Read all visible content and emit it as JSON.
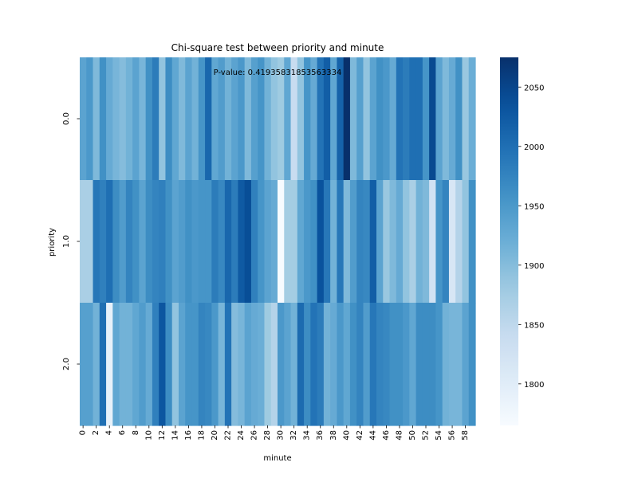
{
  "chart_data": {
    "type": "heatmap",
    "title": "Chi-square test between priority and minute",
    "annotation": "P-value: 0.41935831853563334",
    "xlabel": "minute",
    "ylabel": "priority",
    "x": [
      0,
      1,
      2,
      3,
      4,
      5,
      6,
      7,
      8,
      9,
      10,
      11,
      12,
      13,
      14,
      15,
      16,
      17,
      18,
      19,
      20,
      21,
      22,
      23,
      24,
      25,
      26,
      27,
      28,
      29,
      30,
      31,
      32,
      33,
      34,
      35,
      36,
      37,
      38,
      39,
      40,
      41,
      42,
      43,
      44,
      45,
      46,
      47,
      48,
      49,
      50,
      51,
      52,
      53,
      54,
      55,
      56,
      57,
      58,
      59
    ],
    "x_tick_labels": [
      "0",
      "2",
      "4",
      "6",
      "8",
      "10",
      "12",
      "14",
      "16",
      "18",
      "20",
      "22",
      "24",
      "26",
      "28",
      "30",
      "32",
      "34",
      "36",
      "38",
      "40",
      "42",
      "44",
      "46",
      "48",
      "50",
      "52",
      "54",
      "56",
      "58"
    ],
    "y": [
      "0.0",
      "1.0",
      "2.0"
    ],
    "values": [
      [
        1935,
        1950,
        1905,
        1960,
        1925,
        1910,
        1900,
        1915,
        1935,
        1910,
        1960,
        1985,
        1890,
        1965,
        1930,
        1905,
        1935,
        1915,
        1955,
        2010,
        1930,
        1945,
        1915,
        1935,
        1950,
        1905,
        1940,
        1955,
        1915,
        1890,
        1880,
        1930,
        1840,
        1890,
        1955,
        1925,
        1995,
        2020,
        1930,
        2015,
        2075,
        1905,
        1940,
        1890,
        1935,
        1960,
        1950,
        1925,
        1995,
        1985,
        2000,
        2000,
        1955,
        2045,
        1935,
        1905,
        1925,
        1960,
        1885,
        1920
      ],
      [
        1870,
        1870,
        1990,
        1980,
        2000,
        1965,
        1945,
        1975,
        1960,
        1935,
        1965,
        1975,
        1980,
        1960,
        1935,
        1945,
        1960,
        1950,
        1955,
        1955,
        1985,
        1970,
        2010,
        1985,
        2025,
        2040,
        1980,
        1955,
        1935,
        1925,
        1765,
        1875,
        1875,
        1930,
        1950,
        1960,
        2035,
        1990,
        1915,
        1990,
        1905,
        1945,
        1975,
        1970,
        2020,
        1935,
        1885,
        1905,
        1925,
        1890,
        1870,
        1915,
        1905,
        1825,
        1955,
        1975,
        1815,
        1860,
        1890,
        1960
      ],
      [
        1940,
        1940,
        1915,
        2000,
        1790,
        1930,
        1915,
        1915,
        1930,
        1945,
        1925,
        1980,
        2030,
        1965,
        1890,
        1935,
        1955,
        1955,
        1975,
        1970,
        1950,
        1910,
        1995,
        1900,
        1910,
        1935,
        1925,
        1920,
        1880,
        1860,
        1950,
        1935,
        1915,
        2005,
        1965,
        1995,
        1985,
        1915,
        1925,
        1950,
        1930,
        1960,
        1975,
        1945,
        1990,
        1975,
        1970,
        1960,
        1960,
        1950,
        1930,
        1965,
        1965,
        1965,
        1955,
        1915,
        1910,
        1910,
        1935,
        1960
      ]
    ],
    "colormap": "Blues",
    "vmin": 1765,
    "vmax": 2075,
    "colorbar_ticks": [
      1800,
      1850,
      1900,
      1950,
      2000,
      2050
    ],
    "grid": false,
    "legend": "colorbar-right"
  }
}
